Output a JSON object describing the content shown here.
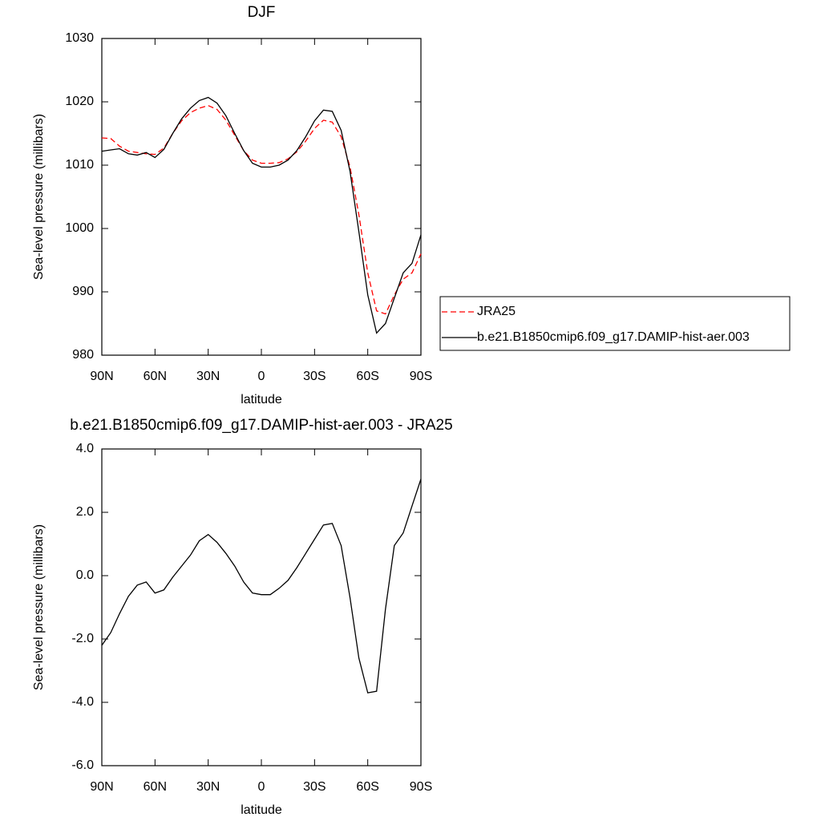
{
  "chart_data": [
    {
      "type": "line",
      "title": "DJF",
      "xlabel": "latitude",
      "ylabel": "Sea-level pressure (millibars)",
      "x": [
        90,
        85,
        80,
        75,
        70,
        65,
        60,
        55,
        50,
        45,
        40,
        35,
        30,
        25,
        20,
        15,
        10,
        5,
        0,
        -5,
        -10,
        -15,
        -20,
        -25,
        -30,
        -35,
        -40,
        -45,
        -50,
        -55,
        -60,
        -65,
        -70,
        -75,
        -80,
        -85,
        -90
      ],
      "xlim": [
        90,
        -90
      ],
      "xticks": [
        {
          "value": 90,
          "label": "90N"
        },
        {
          "value": 60,
          "label": "60N"
        },
        {
          "value": 30,
          "label": "30N"
        },
        0,
        {
          "value": -30,
          "label": "30S"
        },
        {
          "value": -60,
          "label": "60S"
        },
        {
          "value": -90,
          "label": "90S"
        }
      ],
      "ylim": [
        980,
        1030
      ],
      "yticks": [
        980,
        990,
        1000,
        1010,
        1020,
        1030
      ],
      "legend": "right",
      "series": [
        {
          "name": "JRA25",
          "color": "#ff0000",
          "linestyle": "dashed",
          "values": [
            1014.3,
            1014.2,
            1013.0,
            1012.2,
            1012.0,
            1011.8,
            1011.7,
            1012.7,
            1015.0,
            1017.0,
            1018.3,
            1019.0,
            1019.4,
            1018.8,
            1017.1,
            1014.7,
            1012.3,
            1010.8,
            1010.3,
            1010.3,
            1010.4,
            1011.0,
            1012.1,
            1013.8,
            1015.8,
            1017.1,
            1016.8,
            1014.5,
            1009.7,
            1002.2,
            993.0,
            987.0,
            986.5,
            989.5,
            992.0,
            993.0,
            996.0
          ]
        },
        {
          "name": "b.e21.B1850cmip6.f09_g17.DAMIP-hist-aer.003",
          "color": "#000000",
          "linestyle": "solid",
          "values": [
            1012.2,
            1012.4,
            1012.6,
            1011.8,
            1011.6,
            1012.0,
            1011.2,
            1012.5,
            1015.0,
            1017.3,
            1019.0,
            1020.2,
            1020.7,
            1019.8,
            1017.8,
            1015.0,
            1012.3,
            1010.3,
            1009.7,
            1009.7,
            1010.0,
            1010.8,
            1012.3,
            1014.5,
            1017.0,
            1018.7,
            1018.5,
            1015.5,
            1009.0,
            999.5,
            989.5,
            983.5,
            985.0,
            989.0,
            993.0,
            994.5,
            999.0
          ]
        }
      ]
    },
    {
      "type": "line",
      "title": "b.e21.B1850cmip6.f09_g17.DAMIP-hist-aer.003 - JRA25",
      "xlabel": "latitude",
      "ylabel": "Sea-level pressure (millibars)",
      "x": [
        90,
        85,
        80,
        75,
        70,
        65,
        60,
        55,
        50,
        45,
        40,
        35,
        30,
        25,
        20,
        15,
        10,
        5,
        0,
        -5,
        -10,
        -15,
        -20,
        -25,
        -30,
        -35,
        -40,
        -45,
        -50,
        -55,
        -60,
        -65,
        -70,
        -75,
        -80,
        -85,
        -90
      ],
      "xlim": [
        90,
        -90
      ],
      "xticks": [
        {
          "value": 90,
          "label": "90N"
        },
        {
          "value": 60,
          "label": "60N"
        },
        {
          "value": 30,
          "label": "30N"
        },
        0,
        {
          "value": -30,
          "label": "30S"
        },
        {
          "value": -60,
          "label": "60S"
        },
        {
          "value": -90,
          "label": "90S"
        }
      ],
      "ylim": [
        -6,
        4
      ],
      "yticks": [
        {
          "value": -6,
          "label": "-6.0"
        },
        {
          "value": -4,
          "label": "-4.0"
        },
        {
          "value": -2,
          "label": "-2.0"
        },
        {
          "value": 0,
          "label": "0.0"
        },
        {
          "value": 2,
          "label": "2.0"
        },
        {
          "value": 4,
          "label": "4.0"
        }
      ],
      "series": [
        {
          "color": "#000000",
          "linestyle": "solid",
          "values": [
            -2.2,
            -1.8,
            -1.2,
            -0.65,
            -0.3,
            -0.2,
            -0.55,
            -0.45,
            -0.05,
            0.3,
            0.65,
            1.1,
            1.3,
            1.05,
            0.7,
            0.3,
            -0.2,
            -0.55,
            -0.6,
            -0.6,
            -0.4,
            -0.15,
            0.25,
            0.7,
            1.15,
            1.6,
            1.65,
            0.95,
            -0.7,
            -2.6,
            -3.7,
            -3.65,
            -1.05,
            0.95,
            1.35,
            2.2,
            3.05
          ]
        }
      ]
    }
  ]
}
